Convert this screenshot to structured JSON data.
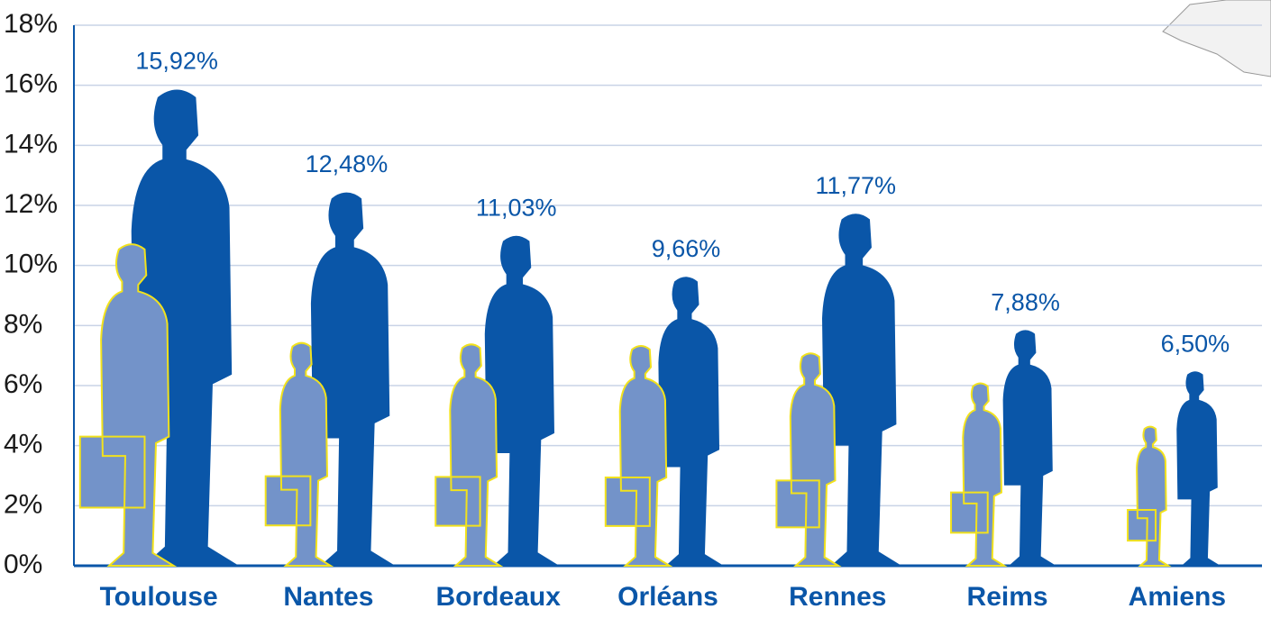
{
  "chart_data": {
    "type": "pictogram",
    "categories": [
      "Toulouse",
      "Nantes",
      "Bordeaux",
      "Orléans",
      "Rennes",
      "Reims",
      "Amiens"
    ],
    "series": [
      {
        "color": "#7393c9",
        "values": [
          10.75,
          7.45,
          7.4,
          7.35,
          7.1,
          6.1,
          4.65
        ]
      },
      {
        "color": "#0a56a8",
        "values": [
          15.92,
          12.48,
          11.03,
          9.66,
          11.77,
          7.88,
          6.5
        ],
        "value_labels": [
          "15,92%",
          "12,48%",
          "11,03%",
          "9,66%",
          "11,77%",
          "7,88%",
          "6,50%"
        ]
      }
    ],
    "ylim": [
      0,
      18
    ],
    "yticks": [
      {
        "value": 0,
        "label": "0%"
      },
      {
        "value": 2,
        "label": "2%"
      },
      {
        "value": 4,
        "label": "4%"
      },
      {
        "value": 6,
        "label": "6%"
      },
      {
        "value": 8,
        "label": "8%"
      },
      {
        "value": 10,
        "label": "10%"
      },
      {
        "value": 12,
        "label": "12%"
      },
      {
        "value": 14,
        "label": "14%"
      },
      {
        "value": 16,
        "label": "16%"
      },
      {
        "value": 18,
        "label": "18%"
      }
    ],
    "grid": true
  }
}
